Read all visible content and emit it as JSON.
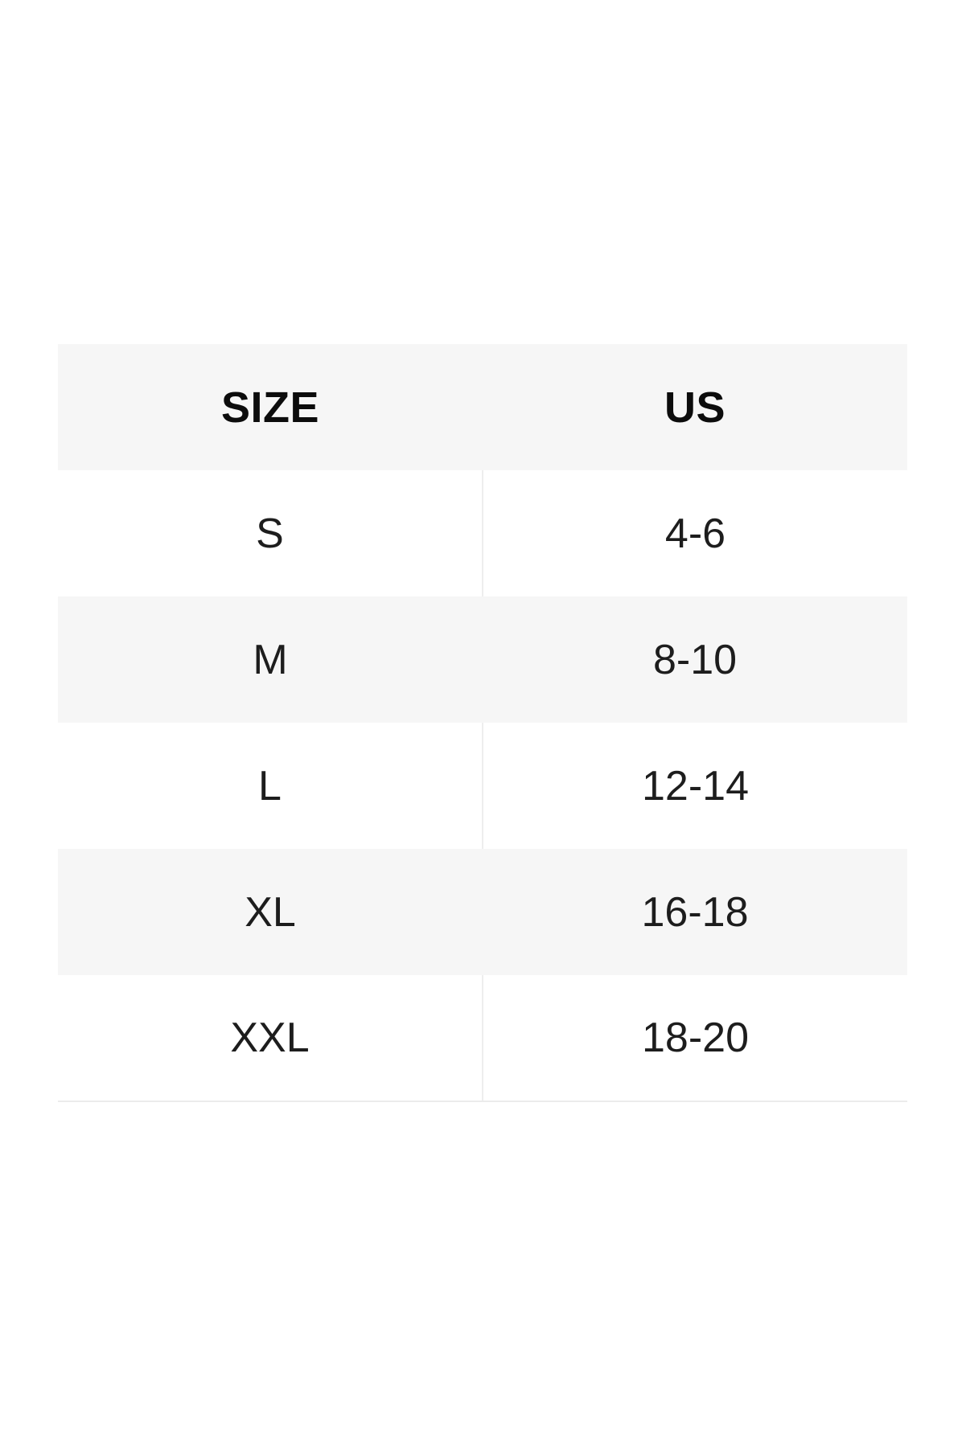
{
  "size_chart": {
    "columns": [
      "SIZE",
      "US"
    ],
    "rows": [
      {
        "size": "S",
        "us": "4-6"
      },
      {
        "size": "M",
        "us": "8-10"
      },
      {
        "size": "L",
        "us": "12-14"
      },
      {
        "size": "XL",
        "us": "16-18"
      },
      {
        "size": "XXL",
        "us": "18-20"
      }
    ]
  },
  "colors": {
    "page_background": "#ffffff",
    "header_row_background": "#f6f6f6",
    "alt_row_background": "#f6f6f6",
    "divider_line": "#eeeeee",
    "bottom_rule": "#ececec",
    "header_text": "#0c0c0c",
    "body_text": "#1d1d1d"
  }
}
